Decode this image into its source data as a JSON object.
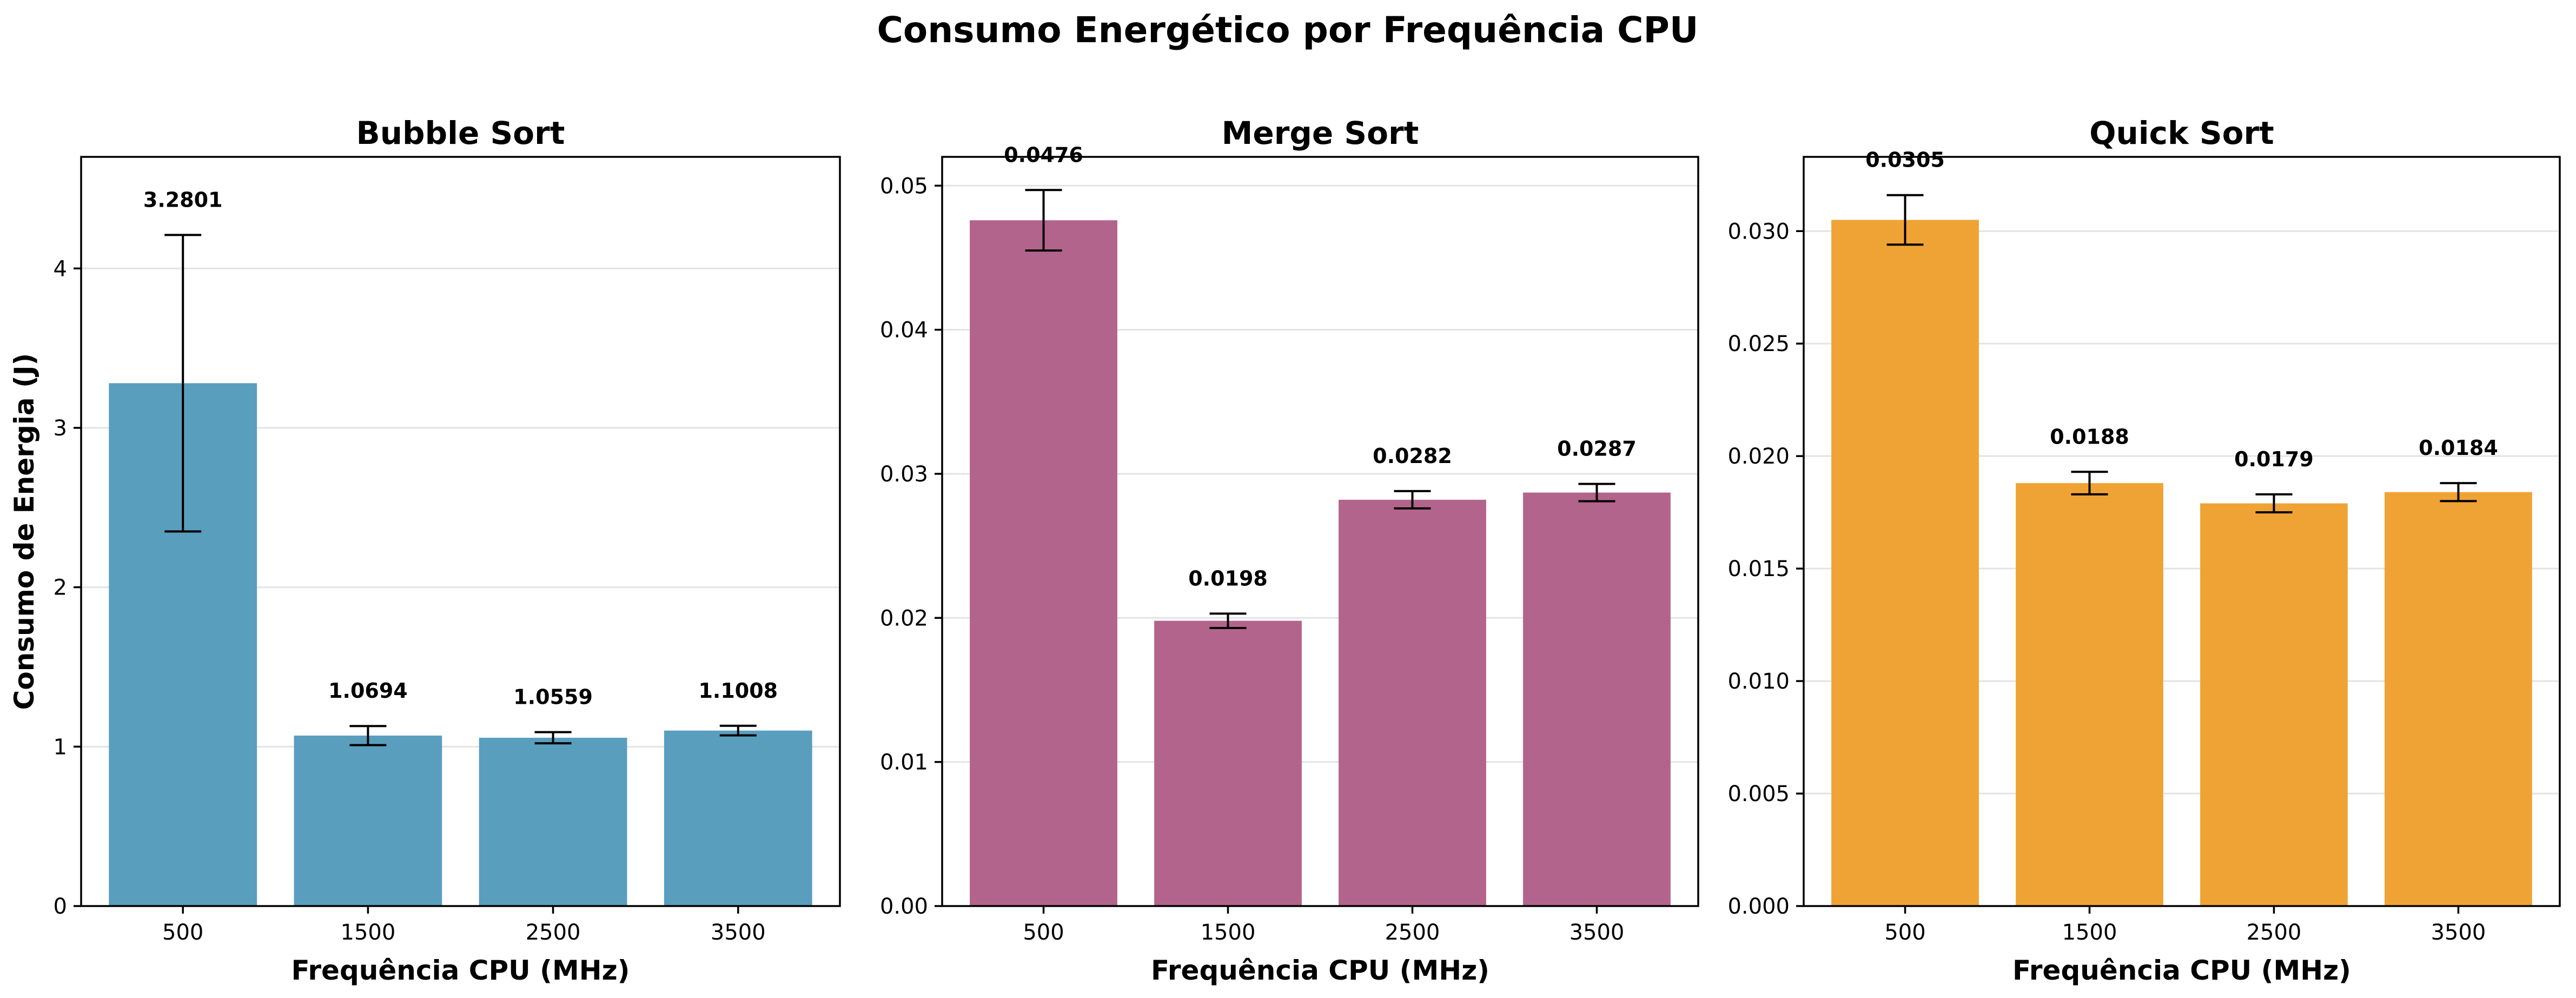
{
  "figure_title": "Consumo Energético por Frequência CPU",
  "chart_data": [
    {
      "type": "bar",
      "title": "Bubble Sort",
      "xlabel": "Frequência CPU (MHz)",
      "ylabel": "Consumo de Energia (J)",
      "categories": [
        "500",
        "1500",
        "2500",
        "3500"
      ],
      "values": [
        3.2801,
        1.0694,
        1.0559,
        1.1008
      ],
      "errors": [
        0.93,
        0.06,
        0.035,
        0.03
      ],
      "value_labels": [
        "3.2801",
        "1.0694",
        "1.0559",
        "1.1008"
      ],
      "ylim": [
        0,
        4.7
      ],
      "yticks": [
        0,
        1,
        2,
        3,
        4
      ],
      "ytick_labels": [
        "0",
        "1",
        "2",
        "3",
        "4"
      ],
      "color": "#5a9ebd",
      "grid": true
    },
    {
      "type": "bar",
      "title": "Merge Sort",
      "xlabel": "Frequência CPU (MHz)",
      "ylabel": "",
      "categories": [
        "500",
        "1500",
        "2500",
        "3500"
      ],
      "values": [
        0.0476,
        0.0198,
        0.0282,
        0.0287
      ],
      "errors": [
        0.0021,
        0.0005,
        0.0006,
        0.0006
      ],
      "value_labels": [
        "0.0476",
        "0.0198",
        "0.0282",
        "0.0287"
      ],
      "ylim": [
        0,
        0.052
      ],
      "yticks": [
        0,
        0.01,
        0.02,
        0.03,
        0.04,
        0.05
      ],
      "ytick_labels": [
        "0.00",
        "0.01",
        "0.02",
        "0.03",
        "0.04",
        "0.05"
      ],
      "color": "#b3648c",
      "grid": true
    },
    {
      "type": "bar",
      "title": "Quick Sort",
      "xlabel": "Frequência CPU (MHz)",
      "ylabel": "",
      "categories": [
        "500",
        "1500",
        "2500",
        "3500"
      ],
      "values": [
        0.0305,
        0.0188,
        0.0179,
        0.0184
      ],
      "errors": [
        0.0011,
        0.0005,
        0.0004,
        0.0004
      ],
      "value_labels": [
        "0.0305",
        "0.0188",
        "0.0179",
        "0.0184"
      ],
      "ylim": [
        0,
        0.0333
      ],
      "yticks": [
        0,
        0.005,
        0.01,
        0.015,
        0.02,
        0.025,
        0.03
      ],
      "ytick_labels": [
        "0.000",
        "0.005",
        "0.010",
        "0.015",
        "0.020",
        "0.025",
        "0.030"
      ],
      "color": "#f0a335",
      "grid": true
    }
  ]
}
